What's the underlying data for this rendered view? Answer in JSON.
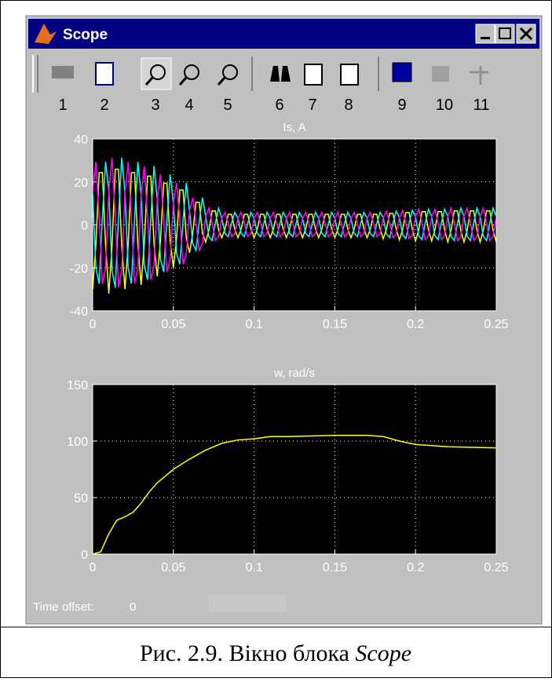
{
  "window": {
    "title": "Scope",
    "toolbar": [
      1,
      2,
      3,
      4,
      5,
      6,
      7,
      8,
      9,
      10,
      11
    ],
    "time_offset_label": "Time offset:",
    "time_offset": 0
  },
  "chart_data": [
    {
      "type": "line",
      "title": "Is, A",
      "x": [
        0,
        0.002,
        0.004,
        0.006,
        0.008,
        0.01,
        0.012,
        0.014,
        0.016,
        0.018,
        0.02,
        0.022,
        0.024,
        0.026,
        0.028,
        0.03,
        0.032,
        0.034,
        0.036,
        0.038,
        0.04,
        0.042,
        0.044,
        0.046,
        0.048,
        0.05,
        0.052,
        0.054,
        0.056,
        0.058,
        0.06,
        0.062,
        0.064,
        0.066,
        0.068,
        0.07,
        0.072,
        0.074,
        0.076,
        0.078,
        0.08,
        0.082,
        0.084,
        0.086,
        0.088,
        0.09,
        0.092,
        0.094,
        0.096,
        0.098,
        0.1,
        0.102,
        0.104,
        0.106,
        0.108,
        0.11,
        0.112,
        0.114,
        0.116,
        0.118,
        0.12,
        0.122,
        0.124,
        0.126,
        0.128,
        0.13,
        0.132,
        0.134,
        0.136,
        0.138,
        0.14,
        0.142,
        0.144,
        0.146,
        0.148,
        0.15,
        0.152,
        0.154,
        0.156,
        0.158,
        0.16,
        0.162,
        0.164,
        0.166,
        0.168,
        0.17,
        0.172,
        0.174,
        0.176,
        0.178,
        0.18,
        0.182,
        0.184,
        0.186,
        0.188,
        0.19,
        0.192,
        0.194,
        0.196,
        0.198,
        0.2,
        0.202,
        0.204,
        0.206,
        0.208,
        0.21,
        0.212,
        0.214,
        0.216,
        0.218,
        0.22,
        0.222,
        0.224,
        0.226,
        0.228,
        0.23,
        0.232,
        0.234,
        0.236,
        0.238,
        0.24,
        0.242,
        0.244,
        0.246,
        0.248,
        0.25
      ],
      "series": [
        {
          "color": "#ffff00",
          "values": [
            -30,
            -9.3,
            24.3,
            24.3,
            -9.3,
            -32,
            -9.9,
            25.9,
            25.9,
            -9.9,
            -30,
            -9.3,
            24.3,
            24.3,
            -9.3,
            -28,
            -8.7,
            22.7,
            22.7,
            -8.7,
            -24,
            -7.4,
            19.4,
            19.4,
            -7.4,
            -20,
            -6.2,
            16.2,
            16.2,
            -6.2,
            -13,
            -4,
            10.5,
            10.5,
            -4,
            -8,
            -2.5,
            6.5,
            6.5,
            -2.5,
            -6,
            -1.9,
            4.9,
            4.9,
            -1.9,
            -6,
            -1.9,
            4.9,
            4.9,
            -1.9,
            -6,
            -1.9,
            4.9,
            4.9,
            -1.9,
            -6,
            -1.9,
            4.9,
            4.9,
            -1.9,
            -6,
            -1.9,
            4.9,
            4.9,
            -1.9,
            -6,
            -1.9,
            4.9,
            4.9,
            -1.9,
            -6,
            -1.9,
            4.9,
            4.9,
            -1.9,
            -6,
            -1.9,
            4.9,
            4.9,
            -1.9,
            -6,
            -1.9,
            4.9,
            4.9,
            -1.9,
            -6,
            -1.9,
            4.9,
            4.9,
            -1.9,
            -6.5,
            -2,
            5.3,
            5.3,
            -2,
            -7,
            -2.2,
            5.7,
            5.7,
            -2.2,
            -7.5,
            -2.3,
            6.1,
            6.1,
            -2.3,
            -7.5,
            -2.3,
            6.1,
            6.1,
            -2.3,
            -8,
            -2.5,
            6.5,
            6.5,
            -2.5,
            -8,
            -2.5,
            6.5,
            6.5,
            -2.5,
            -8,
            -2.5,
            6.5,
            6.5,
            -2.5,
            -8
          ]
        },
        {
          "color": "#00ffff",
          "values": [
            15,
            -20.1,
            -27.4,
            3.2,
            29.3,
            16,
            -21.4,
            -29.2,
            3.4,
            31.3,
            15,
            -20.1,
            -27.4,
            3.2,
            29.3,
            14,
            -18.7,
            -25.6,
            2.9,
            27.4,
            12,
            -16.1,
            -21.9,
            2.5,
            23.5,
            10,
            -13.4,
            -18.3,
            2.1,
            19.6,
            6.5,
            -8.7,
            -11.9,
            1.4,
            12.7,
            4,
            -5.4,
            -7.3,
            0.8,
            7.8,
            3,
            -4,
            -5.5,
            0.6,
            5.9,
            3,
            -4,
            -5.5,
            0.6,
            5.9,
            3,
            -4,
            -5.5,
            0.6,
            5.9,
            3,
            -4,
            -5.5,
            0.6,
            5.9,
            3,
            -4,
            -5.5,
            0.6,
            5.9,
            3,
            -4,
            -5.5,
            0.6,
            5.9,
            3,
            -4,
            -5.5,
            0.6,
            5.9,
            3,
            -4,
            -5.5,
            0.6,
            5.9,
            3,
            -4,
            -5.5,
            0.6,
            5.9,
            3,
            -4,
            -5.5,
            0.6,
            5.9,
            3.3,
            -4.3,
            -5.9,
            0.7,
            6.4,
            3.5,
            -4.7,
            -6.4,
            0.7,
            6.8,
            3.8,
            -5,
            -6.9,
            0.8,
            7.3,
            3.8,
            -5,
            -6.9,
            0.8,
            7.3,
            4,
            -5.4,
            -7.3,
            0.8,
            7.8,
            4,
            -5.4,
            -7.3,
            0.8,
            7.8,
            4,
            -5.4,
            -7.3,
            0.8,
            7.8,
            4
          ]
        },
        {
          "color": "#ff00ff",
          "values": [
            15,
            29.3,
            3.2,
            -27.4,
            -20.1,
            16,
            31.3,
            3.4,
            -29.2,
            -21.4,
            15,
            29.3,
            3.2,
            -27.4,
            -20.1,
            14,
            27.4,
            2.9,
            -25.6,
            -18.7,
            12,
            23.5,
            2.5,
            -21.9,
            -16.1,
            10,
            19.6,
            2.1,
            -18.3,
            -13.4,
            6.5,
            12.7,
            1.4,
            -11.9,
            -8.7,
            4,
            7.8,
            0.8,
            -7.3,
            -5.4,
            3,
            5.9,
            0.6,
            -5.5,
            -4,
            3,
            5.9,
            0.6,
            -5.5,
            -4,
            3,
            5.9,
            0.6,
            -5.5,
            -4,
            3,
            5.9,
            0.6,
            -5.5,
            -4,
            3,
            5.9,
            0.6,
            -5.5,
            -4,
            3,
            5.9,
            0.6,
            -5.5,
            -4,
            3,
            5.9,
            0.6,
            -5.5,
            -4,
            3,
            5.9,
            0.6,
            -5.5,
            -4,
            3,
            5.9,
            0.6,
            -5.5,
            -4,
            3,
            5.9,
            0.6,
            -5.5,
            -4,
            3.3,
            6.4,
            0.7,
            -5.9,
            -4.3,
            3.5,
            6.8,
            0.7,
            -6.4,
            -4.7,
            3.8,
            7.3,
            0.8,
            -6.9,
            -5,
            3.8,
            7.3,
            0.8,
            -6.9,
            -5,
            4,
            7.8,
            0.8,
            -7.3,
            -5.4,
            4,
            7.8,
            0.8,
            -7.3,
            -5.4,
            4,
            7.8,
            0.8,
            -7.3,
            -5.4,
            4
          ]
        }
      ],
      "xlim": [
        0,
        0.25
      ],
      "xticks": [
        0,
        0.05,
        0.1,
        0.15,
        0.2,
        0.25
      ],
      "ylim": [
        -40,
        40
      ],
      "yticks": [
        -40,
        -20,
        0,
        20,
        40
      ],
      "grid": true
    },
    {
      "type": "line",
      "title": "w, rad/s",
      "x": [
        0,
        0.005,
        0.01,
        0.015,
        0.02,
        0.025,
        0.03,
        0.035,
        0.04,
        0.05,
        0.06,
        0.07,
        0.08,
        0.09,
        0.1,
        0.11,
        0.12,
        0.15,
        0.17,
        0.18,
        0.19,
        0.2,
        0.21,
        0.22,
        0.25
      ],
      "series": [
        {
          "color": "#ffff00",
          "values": [
            0,
            2,
            18,
            30,
            33,
            37,
            45,
            55,
            63,
            75,
            84,
            92,
            98,
            101,
            102,
            104,
            104,
            105,
            105,
            104,
            100,
            97,
            96,
            95,
            94
          ]
        }
      ],
      "xlim": [
        0,
        0.25
      ],
      "xticks": [
        0,
        0.05,
        0.1,
        0.15,
        0.2,
        0.25
      ],
      "ylim": [
        0,
        150
      ],
      "yticks": [
        0,
        50,
        100,
        150
      ],
      "grid": true
    }
  ],
  "caption": {
    "text": "Рис. 2.9. Вікно блока ",
    "emphasis": "Scope"
  }
}
